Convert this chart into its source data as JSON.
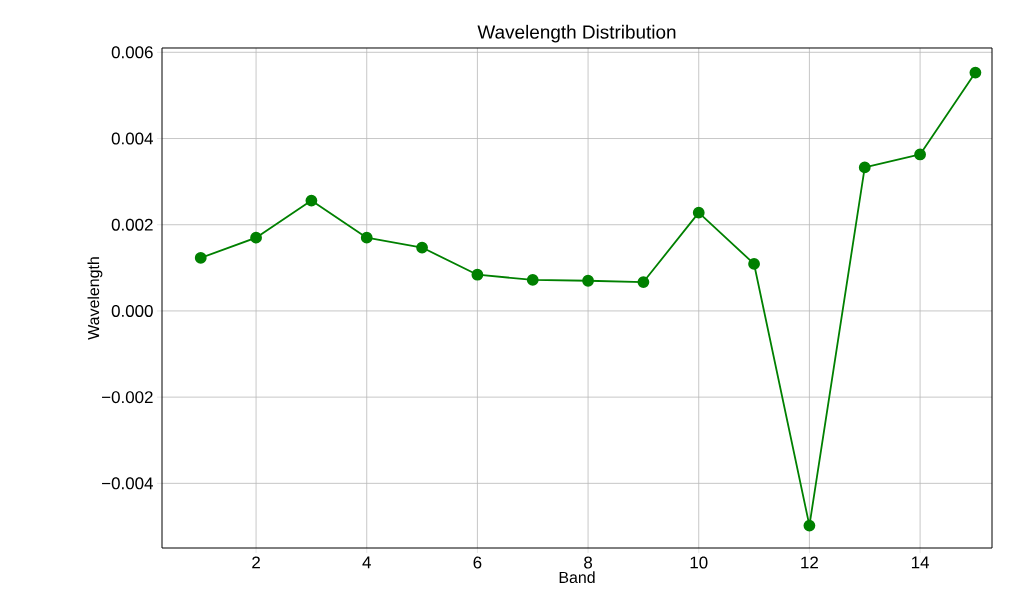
{
  "chart_data": {
    "type": "line",
    "title": "Wavelength Distribution",
    "xlabel": "Band",
    "ylabel": "Wavelength",
    "x": [
      1,
      2,
      3,
      4,
      5,
      6,
      7,
      8,
      9,
      10,
      11,
      12,
      13,
      14,
      15
    ],
    "series": [
      {
        "color": "#008000",
        "values": [
          0.00123,
          0.0017,
          0.00256,
          0.0017,
          0.00147,
          0.00084,
          0.00072,
          0.0007,
          0.00067,
          0.00228,
          0.00109,
          -0.00498,
          0.00333,
          0.00363,
          0.00553
        ]
      }
    ],
    "xlim": [
      0.3,
      15.3
    ],
    "ylim": [
      -0.0055,
      0.0061
    ],
    "xticks": [
      2,
      4,
      6,
      8,
      10,
      12,
      14
    ],
    "yticks": [
      {
        "value": -0.004,
        "label": "−0.004"
      },
      {
        "value": -0.002,
        "label": "−0.002"
      },
      {
        "value": 0,
        "label": "0.000"
      },
      {
        "value": 0.002,
        "label": "0.002"
      },
      {
        "value": 0.004,
        "label": "0.004"
      },
      {
        "value": 0.006,
        "label": "0.006"
      }
    ],
    "grid": true,
    "marker": "circle",
    "line_style": "solid"
  }
}
